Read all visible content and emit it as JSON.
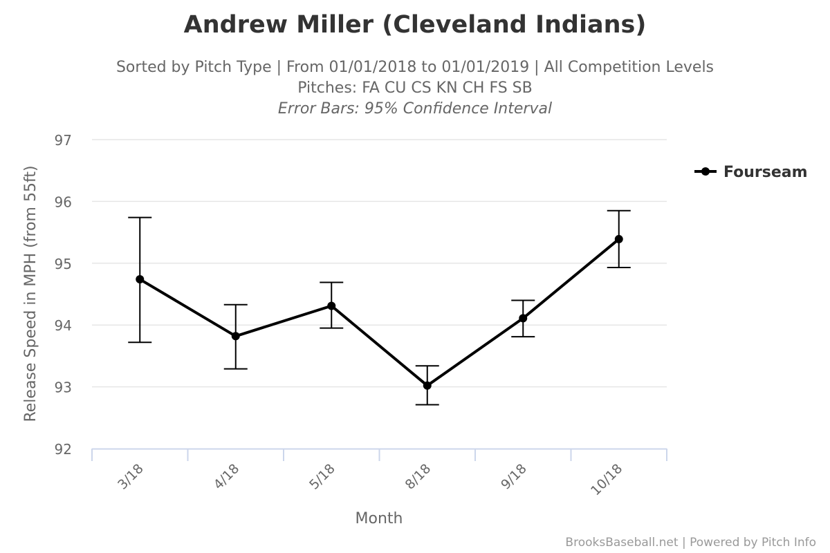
{
  "chart_data": {
    "type": "line",
    "title": "Andrew Miller (Cleveland Indians)",
    "subtitle_lines": [
      "Sorted by Pitch Type | From 01/01/2018 to 01/01/2019 | All Competition Levels",
      "Pitches: FA CU CS KN CH FS SB",
      "Error Bars: 95% Confidence Interval"
    ],
    "xlabel": "Month",
    "ylabel": "Release Speed in MPH (from 55ft)",
    "categories": [
      "3/18",
      "4/18",
      "5/18",
      "8/18",
      "9/18",
      "10/18"
    ],
    "ylim": [
      92,
      97
    ],
    "yticks": [
      92,
      93,
      94,
      95,
      96,
      97
    ],
    "grid": true,
    "legend_position": "top-right",
    "series": [
      {
        "name": "Fourseam",
        "color": "#000000",
        "values": [
          94.74,
          93.82,
          94.31,
          93.02,
          94.11,
          95.39
        ],
        "error_low": [
          93.72,
          93.29,
          93.95,
          92.71,
          93.81,
          94.93
        ],
        "error_high": [
          95.74,
          94.33,
          94.69,
          93.34,
          94.4,
          95.85
        ]
      }
    ],
    "credits": "BrooksBaseball.net | Powered by Pitch Info"
  }
}
